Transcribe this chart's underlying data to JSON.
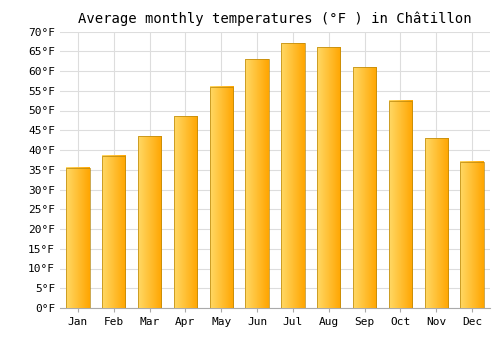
{
  "title": "Average monthly temperatures (°F ) in Châtillon",
  "months": [
    "Jan",
    "Feb",
    "Mar",
    "Apr",
    "May",
    "Jun",
    "Jul",
    "Aug",
    "Sep",
    "Oct",
    "Nov",
    "Dec"
  ],
  "values": [
    35.5,
    38.5,
    43.5,
    48.5,
    56,
    63,
    67,
    66,
    61,
    52.5,
    43,
    37
  ],
  "bar_color_left": "#FFD966",
  "bar_color_right": "#FFA500",
  "bar_edge_color": "#B8860B",
  "ylim": [
    0,
    70
  ],
  "yticks": [
    0,
    5,
    10,
    15,
    20,
    25,
    30,
    35,
    40,
    45,
    50,
    55,
    60,
    65,
    70
  ],
  "ytick_labels": [
    "0°F",
    "5°F",
    "10°F",
    "15°F",
    "20°F",
    "25°F",
    "30°F",
    "35°F",
    "40°F",
    "45°F",
    "50°F",
    "55°F",
    "60°F",
    "65°F",
    "70°F"
  ],
  "background_color": "#FFFFFF",
  "grid_color": "#DDDDDD",
  "title_fontsize": 10,
  "tick_fontsize": 8
}
